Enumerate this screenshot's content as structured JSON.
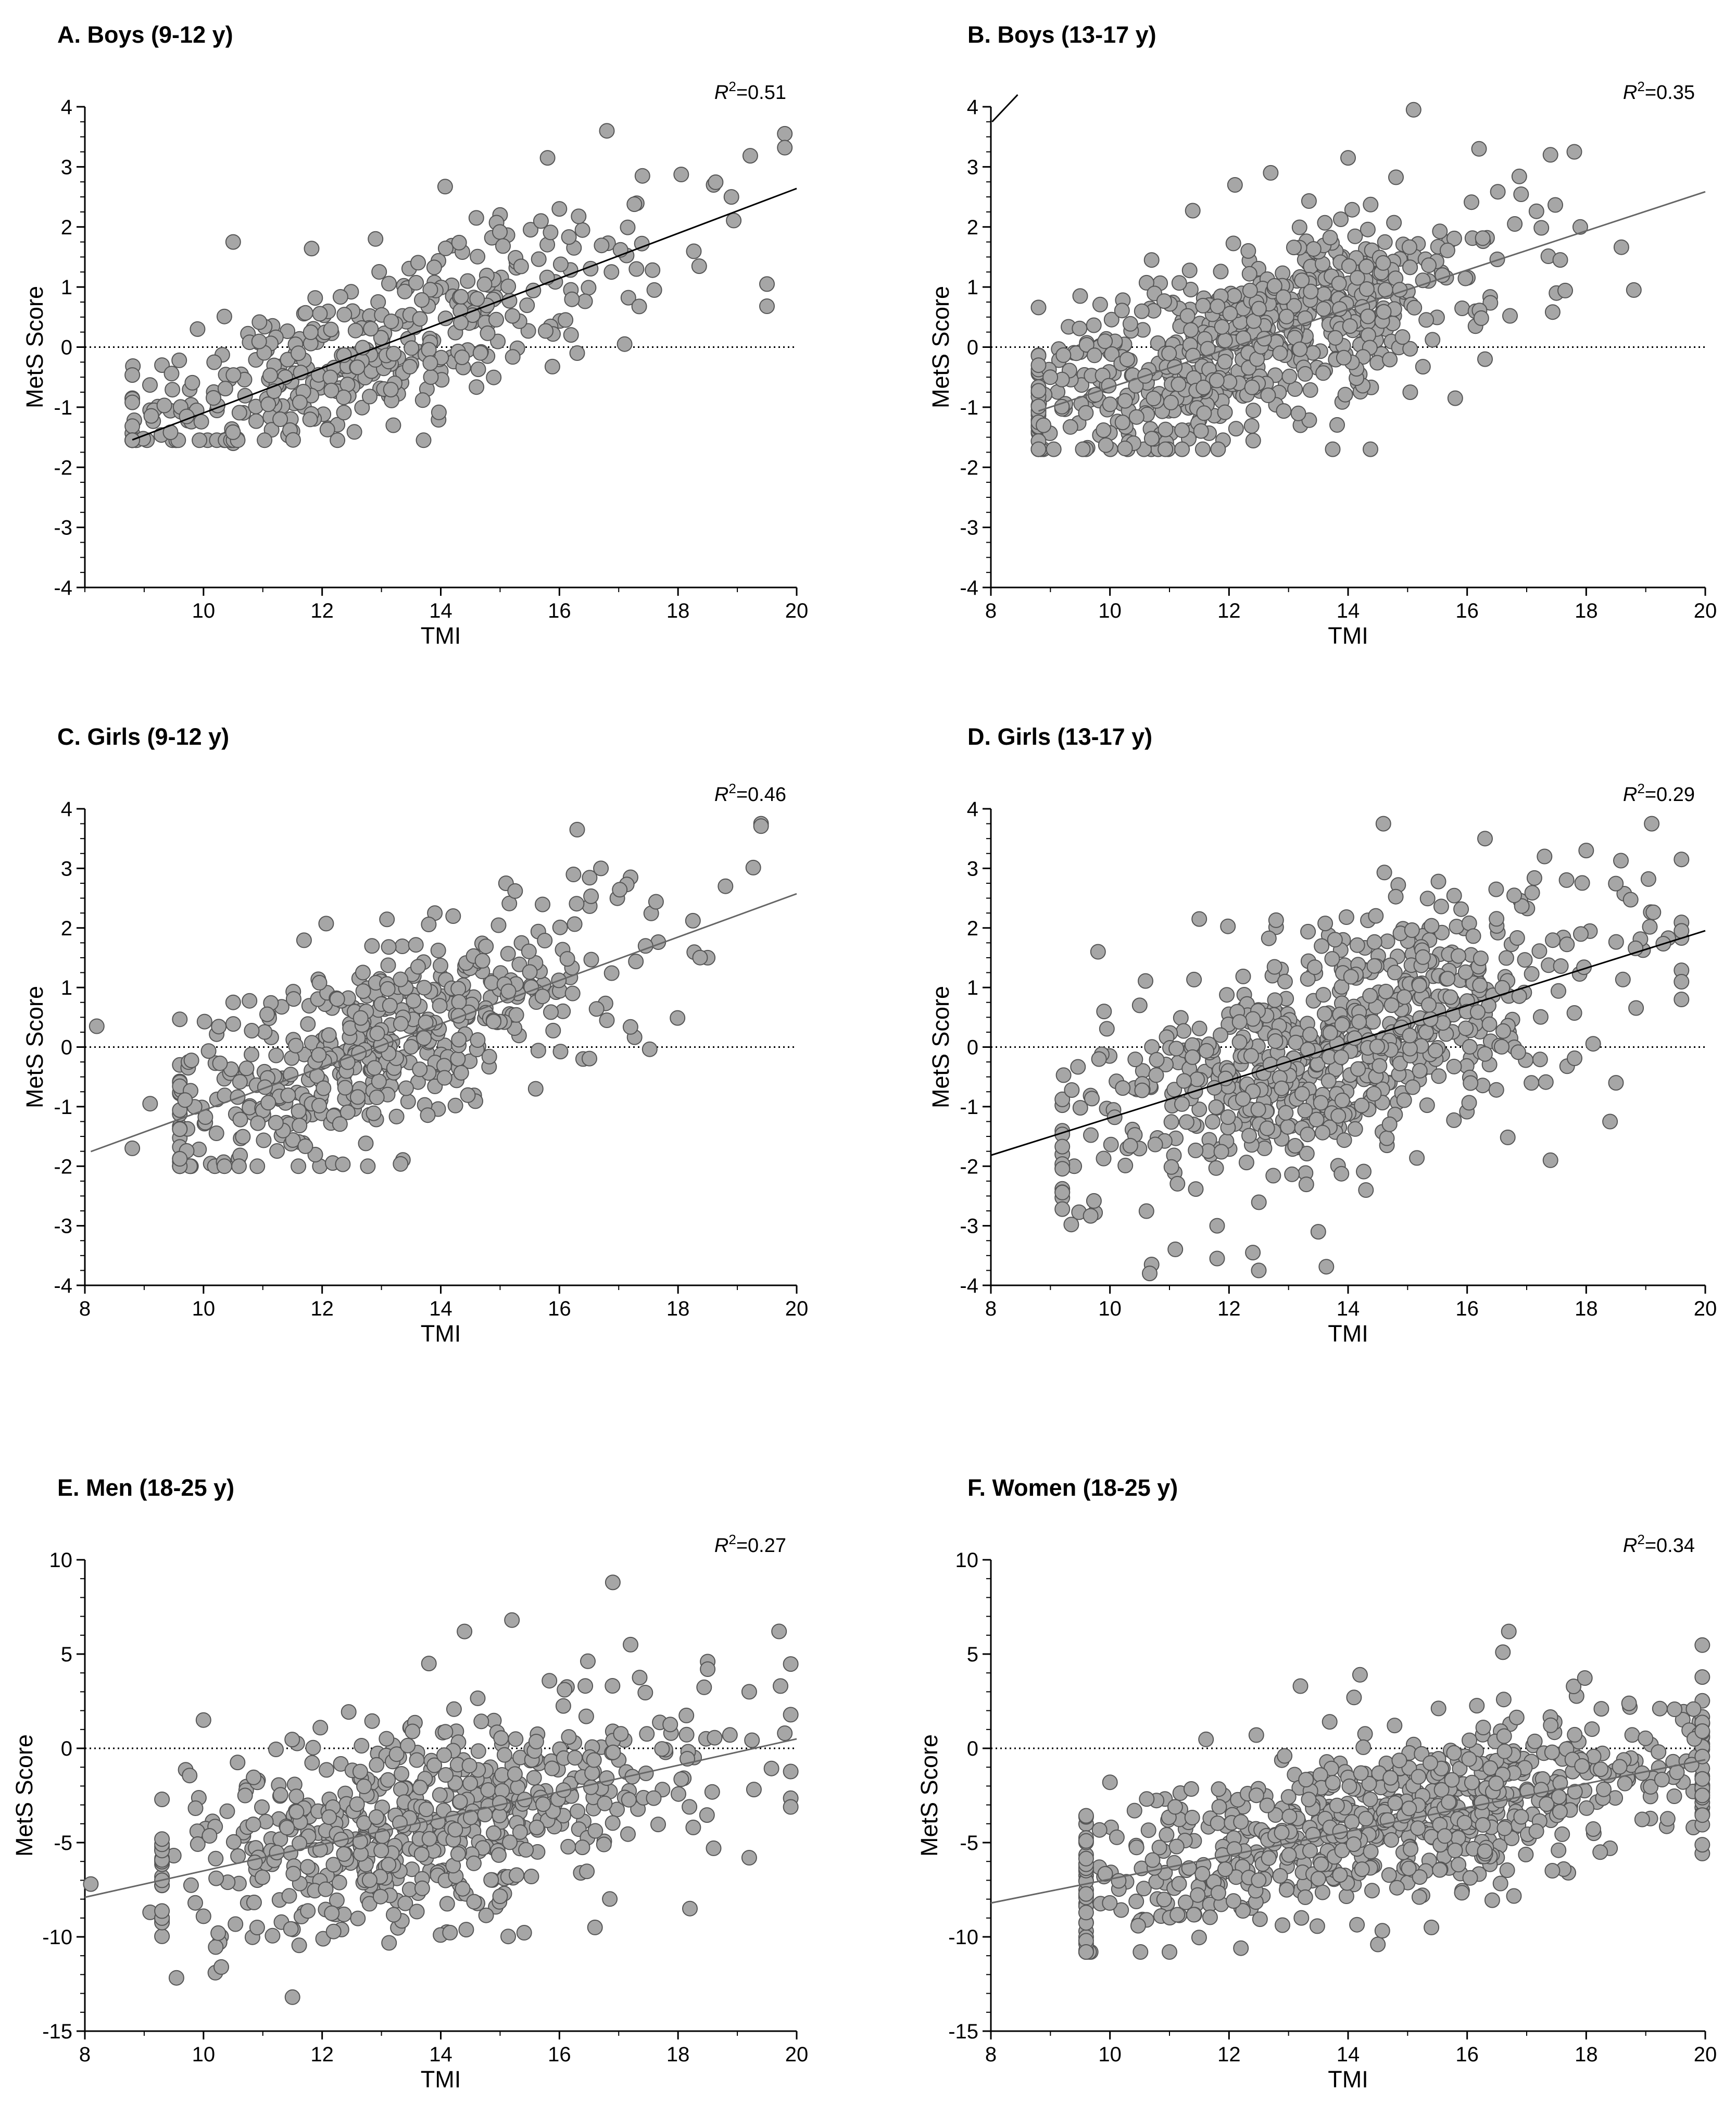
{
  "figure": {
    "colors": {
      "point_fill": "#a6a6a6",
      "point_stroke": "#555555",
      "fit_line_dark": "#000000",
      "fit_line_gray": "#666666"
    }
  },
  "chart_data": [
    {
      "id": "A",
      "type": "scatter",
      "title": "A. Boys (9-12 y)",
      "xlabel": "TMI",
      "ylabel": "MetS Score",
      "xlim": [
        8,
        20
      ],
      "ylim": [
        -4,
        4
      ],
      "xticks": [
        10,
        12,
        14,
        16,
        18,
        20
      ],
      "xtick_labels": [
        "10",
        "12",
        "14",
        "16",
        "18",
        "20"
      ],
      "yticks": [
        -4,
        -3,
        -2,
        -1,
        0,
        1,
        2,
        3,
        4
      ],
      "ytick_labels": [
        "-4",
        "-3",
        "-2",
        "-1",
        "0",
        "1",
        "2",
        "3",
        "4"
      ],
      "r2_prefix": "R",
      "r2_exp": "2",
      "r2_value": "=0.51",
      "reference_line_y": 0,
      "fit": {
        "slope": 0.3735,
        "intercept": -4.83,
        "x_range": [
          8.8,
          20
        ],
        "color": "#000000"
      },
      "n_points": 420,
      "points": [
        [
          19.8,
          3.55
        ],
        [
          16.8,
          3.6
        ],
        [
          15.8,
          3.15
        ],
        [
          18.6,
          2.7
        ],
        [
          19.5,
          1.05
        ],
        [
          19.5,
          0.68
        ],
        [
          17.1,
          0.05
        ],
        [
          15.0,
          2.2
        ],
        [
          10.5,
          1.75
        ],
        [
          16.3,
          -0.1
        ],
        [
          8.8,
          -0.85
        ],
        [
          9.1,
          -1.05
        ],
        [
          9.9,
          0.3
        ],
        [
          9.3,
          -0.3
        ],
        [
          11.5,
          -1.4
        ],
        [
          10.5,
          -1.6
        ],
        [
          12.1,
          -1.35
        ],
        [
          13.2,
          -1.3
        ],
        [
          13.0,
          0.15
        ],
        [
          14.6,
          2.15
        ],
        [
          17.6,
          0.95
        ],
        [
          18.9,
          2.5
        ],
        [
          17.4,
          2.85
        ],
        [
          14.0,
          -0.4
        ],
        [
          12.9,
          1.8
        ],
        [
          16.0,
          2.3
        ]
      ]
    },
    {
      "id": "B",
      "type": "scatter",
      "title": "B. Boys (13-17 y)",
      "xlabel": "TMI",
      "ylabel": "MetS Score",
      "xlim": [
        8,
        20
      ],
      "ylim": [
        -4,
        4
      ],
      "xticks": [
        8,
        10,
        12,
        14,
        16,
        18,
        20
      ],
      "xtick_labels": [
        "8",
        "10",
        "12",
        "14",
        "16",
        "18",
        "20"
      ],
      "yticks": [
        -4,
        -3,
        -2,
        -1,
        0,
        1,
        2,
        3,
        4
      ],
      "ytick_labels": [
        "-4",
        "-3",
        "-2",
        "-1",
        "0",
        "1",
        "2",
        "3",
        "4"
      ],
      "r2_prefix": "R",
      "r2_exp": "2",
      "r2_value": "=0.35",
      "reference_line_y": 0,
      "fit": {
        "slope": 0.3258,
        "intercept": -3.93,
        "x_range": [
          8.8,
          20
        ],
        "color": "#666666"
      },
      "n_points": 700,
      "points": [
        [
          15.1,
          3.95
        ],
        [
          16.2,
          3.3
        ],
        [
          17.8,
          3.25
        ],
        [
          17.4,
          3.2
        ],
        [
          18.8,
          0.95
        ],
        [
          17.5,
          0.9
        ],
        [
          16.3,
          -0.2
        ],
        [
          15.8,
          -0.85
        ],
        [
          8.8,
          -1.3
        ],
        [
          9.5,
          0.85
        ],
        [
          10.7,
          1.45
        ],
        [
          14.0,
          3.15
        ],
        [
          12.1,
          2.7
        ],
        [
          12.7,
          2.9
        ],
        [
          16.8,
          2.05
        ],
        [
          17.9,
          2.0
        ],
        [
          13.2,
          -1.3
        ],
        [
          11.9,
          -1.55
        ]
      ]
    },
    {
      "id": "C",
      "type": "scatter",
      "title": "C. Girls (9-12 y)",
      "xlabel": "TMI",
      "ylabel": "MetS Score",
      "xlim": [
        8,
        20
      ],
      "ylim": [
        -4,
        4
      ],
      "xticks": [
        8,
        10,
        12,
        14,
        16,
        18,
        20
      ],
      "xtick_labels": [
        "8",
        "10",
        "12",
        "14",
        "16",
        "18",
        "20"
      ],
      "yticks": [
        -4,
        -3,
        -2,
        -1,
        0,
        1,
        2,
        3,
        4
      ],
      "ytick_labels": [
        "-4",
        "-3",
        "-2",
        "-1",
        "0",
        "1",
        "2",
        "3",
        "4"
      ],
      "r2_prefix": "R",
      "r2_exp": "2",
      "r2_value": "=0.46",
      "reference_line_y": 0,
      "fit": {
        "slope": 0.3637,
        "intercept": -4.7,
        "x_range": [
          8.1,
          20
        ],
        "color": "#666666"
      },
      "n_points": 520,
      "points": [
        [
          8.2,
          0.35
        ],
        [
          8.8,
          -1.7
        ],
        [
          9.1,
          -0.95
        ],
        [
          9.6,
          -0.3
        ],
        [
          11.6,
          -2.0
        ],
        [
          16.3,
          3.65
        ],
        [
          19.4,
          3.75
        ],
        [
          18.8,
          2.7
        ],
        [
          18.5,
          1.5
        ],
        [
          16.8,
          0.45
        ],
        [
          16.4,
          -0.2
        ],
        [
          15.6,
          -0.7
        ],
        [
          15.1,
          2.75
        ],
        [
          16.7,
          3.0
        ],
        [
          17.2,
          2.85
        ],
        [
          14.3,
          -0.35
        ],
        [
          10.5,
          0.75
        ],
        [
          13.9,
          2.25
        ]
      ]
    },
    {
      "id": "D",
      "type": "scatter",
      "title": "D. Girls (13-17 y)",
      "xlabel": "TMI",
      "ylabel": "MetS Score",
      "xlim": [
        8,
        20
      ],
      "ylim": [
        -4,
        4
      ],
      "xticks": [
        8,
        10,
        12,
        14,
        16,
        18,
        20
      ],
      "xtick_labels": [
        "8",
        "10",
        "12",
        "14",
        "16",
        "18",
        "20"
      ],
      "yticks": [
        -4,
        -3,
        -2,
        -1,
        0,
        1,
        2,
        3,
        4
      ],
      "ytick_labels": [
        "-4",
        "-3",
        "-2",
        "-1",
        "0",
        "1",
        "2",
        "3",
        "4"
      ],
      "r2_prefix": "R",
      "r2_exp": "2",
      "r2_value": "=0.29",
      "reference_line_y": 0,
      "fit": {
        "slope": 0.3142,
        "intercept": -4.33,
        "x_range": [
          8,
          20
        ],
        "color": "#000000"
      },
      "n_points": 760,
      "points": [
        [
          10.7,
          -3.65
        ],
        [
          11.8,
          -3.55
        ],
        [
          12.5,
          -3.75
        ],
        [
          12.4,
          -3.45
        ],
        [
          13.5,
          -3.1
        ],
        [
          11.8,
          -3.0
        ],
        [
          9.2,
          -1.8
        ],
        [
          9.4,
          -2.0
        ],
        [
          9.8,
          1.6
        ],
        [
          19.1,
          3.75
        ],
        [
          19.6,
          3.15
        ],
        [
          16.3,
          3.5
        ],
        [
          18.0,
          3.3
        ],
        [
          17.3,
          3.2
        ],
        [
          19.6,
          0.8
        ],
        [
          18.5,
          -0.6
        ],
        [
          18.4,
          -1.25
        ],
        [
          17.4,
          -1.9
        ],
        [
          10.5,
          0.7
        ],
        [
          11.5,
          2.15
        ],
        [
          14.3,
          -2.4
        ]
      ]
    },
    {
      "id": "E",
      "type": "scatter",
      "title": "E. Men (18-25 y)",
      "xlabel": "TMI",
      "ylabel": "MetS Score",
      "xlim": [
        8,
        20
      ],
      "ylim": [
        -15,
        10
      ],
      "xticks": [
        8,
        10,
        12,
        14,
        16,
        18,
        20
      ],
      "xtick_labels": [
        "8",
        "10",
        "12",
        "14",
        "16",
        "18",
        "20"
      ],
      "yticks": [
        -15,
        -10,
        -5,
        0,
        5,
        10
      ],
      "ytick_labels": [
        "-15",
        "-10",
        "-5",
        "0",
        "5",
        "10"
      ],
      "r2_prefix": "R",
      "r2_exp": "2",
      "r2_value": "=0.27",
      "reference_line_y": 0,
      "fit": {
        "slope": 0.7,
        "intercept": -13.5,
        "x_range": [
          8,
          20
        ],
        "color": "#666666"
      },
      "n_points": 640,
      "points": [
        [
          8.1,
          -7.2
        ],
        [
          9.1,
          -8.7
        ],
        [
          10.0,
          1.5
        ],
        [
          10.2,
          -11.9
        ],
        [
          10.3,
          -11.6
        ],
        [
          11.5,
          -13.2
        ],
        [
          16.9,
          8.8
        ],
        [
          15.2,
          6.8
        ],
        [
          14.4,
          6.2
        ],
        [
          19.8,
          0.8
        ],
        [
          19.2,
          -5.8
        ],
        [
          18.6,
          -5.3
        ],
        [
          18.2,
          -8.5
        ],
        [
          16.6,
          -9.5
        ],
        [
          17.2,
          5.5
        ],
        [
          18.5,
          4.6
        ],
        [
          18.5,
          4.2
        ],
        [
          19.2,
          3.0
        ],
        [
          13.8,
          4.5
        ]
      ]
    },
    {
      "id": "F",
      "type": "scatter",
      "title": "F. Women (18-25 y)",
      "xlabel": "TMI",
      "ylabel": "MetS Score",
      "xlim": [
        8,
        20
      ],
      "ylim": [
        -15,
        10
      ],
      "xticks": [
        8,
        10,
        12,
        14,
        16,
        18,
        20
      ],
      "xtick_labels": [
        "8",
        "10",
        "12",
        "14",
        "16",
        "18",
        "20"
      ],
      "yticks": [
        -15,
        -10,
        -5,
        0,
        5,
        10
      ],
      "ytick_labels": [
        "-15",
        "-10",
        "-5",
        "0",
        "5",
        "10"
      ],
      "r2_prefix": "R",
      "r2_exp": "2",
      "r2_value": "=0.34",
      "reference_line_y": 0,
      "fit": {
        "slope": 0.6333,
        "intercept": -13.27,
        "x_range": [
          8,
          20
        ],
        "color": "#666666"
      },
      "n_points": 780,
      "points": [
        [
          9.6,
          -9.7
        ],
        [
          9.9,
          -6.8
        ],
        [
          10.0,
          -1.8
        ],
        [
          11.0,
          -10.8
        ],
        [
          12.2,
          -10.6
        ],
        [
          14.5,
          -10.4
        ],
        [
          16.7,
          6.2
        ],
        [
          16.6,
          5.1
        ],
        [
          13.2,
          3.3
        ],
        [
          14.2,
          3.9
        ],
        [
          14.1,
          2.7
        ],
        [
          19.8,
          -4.2
        ],
        [
          19.9,
          1.4
        ],
        [
          18.4,
          -5.3
        ],
        [
          17.7,
          -6.6
        ],
        [
          15.4,
          -9.5
        ]
      ]
    }
  ]
}
